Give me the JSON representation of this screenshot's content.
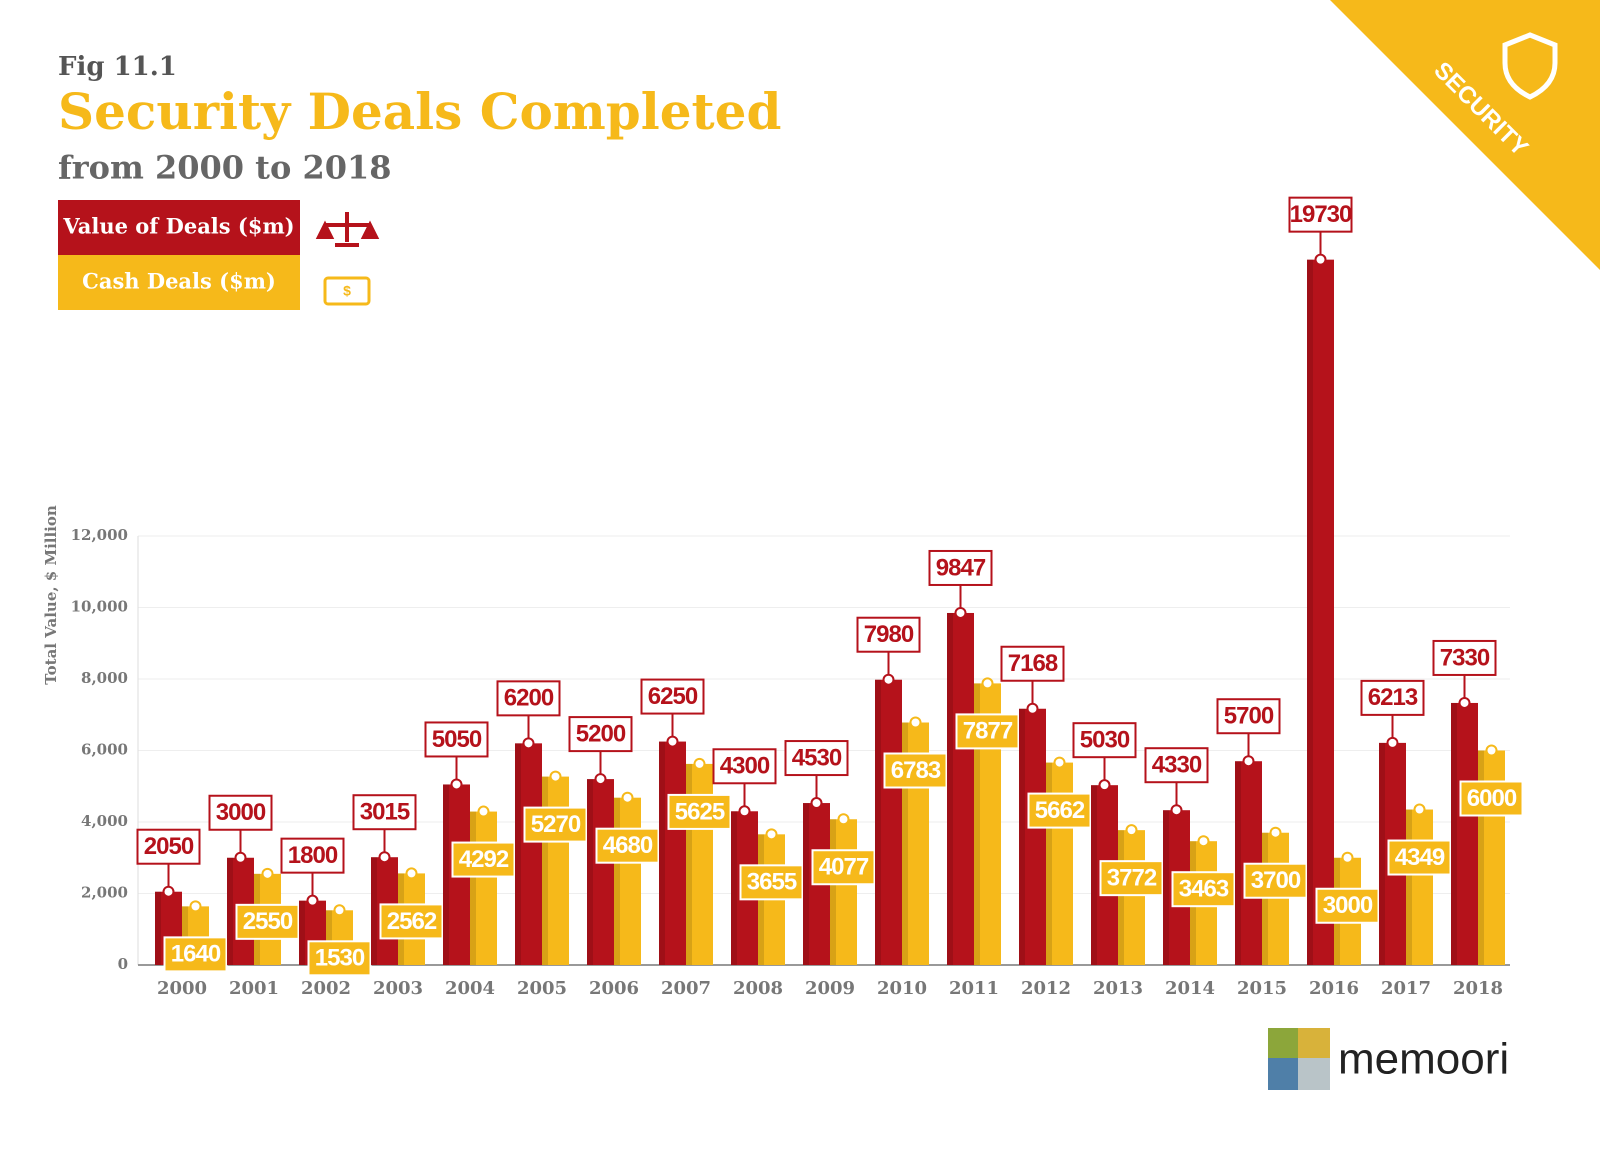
{
  "chart_data": {
    "type": "bar",
    "figure_label": "Fig 11.1",
    "title": "Security Deals Completed",
    "subtitle": "from 2000 to 2018",
    "ylabel": "Total Value, $ Million",
    "corner_badge": "SECURITY",
    "brand": "memoori",
    "categories": [
      "2000",
      "2001",
      "2002",
      "2003",
      "2004",
      "2005",
      "2006",
      "2007",
      "2008",
      "2009",
      "2010",
      "2011",
      "2012",
      "2013",
      "2014",
      "2015",
      "2016",
      "2017",
      "2018"
    ],
    "series": [
      {
        "name": "Value of Deals ($m)",
        "color": "#b5121b",
        "values": [
          2050,
          3000,
          1800,
          3015,
          5050,
          6200,
          5200,
          6250,
          4300,
          4530,
          7980,
          9847,
          7168,
          5030,
          4330,
          5700,
          19730,
          6213,
          7330
        ]
      },
      {
        "name": "Cash Deals ($m)",
        "color": "#f6b91a",
        "values": [
          1640,
          2550,
          1530,
          2562,
          4292,
          5270,
          4680,
          5625,
          3655,
          4077,
          6783,
          7877,
          5662,
          3772,
          3463,
          3700,
          3000,
          4349,
          6000
        ]
      }
    ],
    "ylim": [
      0,
      20000
    ],
    "yticks": [
      0,
      {
        "value": 2000,
        "label": "2,000"
      },
      {
        "value": 4000,
        "label": "4,000"
      },
      {
        "value": 6000,
        "label": "6,000"
      },
      {
        "value": 8000,
        "label": "8,000"
      },
      {
        "value": 10000,
        "label": "10,000"
      },
      {
        "value": 12000,
        "label": "12,000"
      }
    ],
    "grid": true,
    "legend": "top-left"
  }
}
